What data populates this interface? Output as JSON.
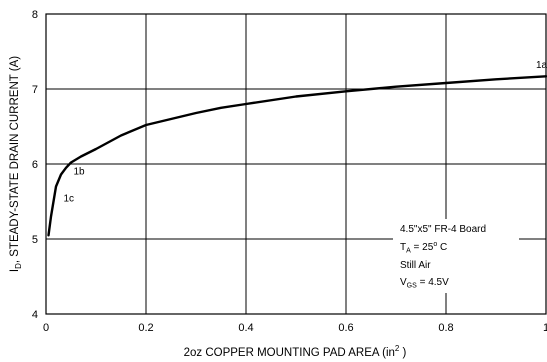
{
  "chart_data": {
    "type": "line",
    "title": "",
    "xlabel": "2oz COPPER MOUNTING PAD AREA (in",
    "xlabel_sup": "2",
    "xlabel_end": " )",
    "ylabel_sym": "I",
    "ylabel_sub": "D",
    "ylabel_rest": ", STEADY-STATE DRAIN CURRENT (A)",
    "xlim": [
      0,
      1
    ],
    "ylim": [
      4,
      8
    ],
    "xticks": [
      0,
      0.2,
      0.4,
      0.6,
      0.8,
      1
    ],
    "xtick_labels": [
      "0",
      "0.2",
      "0.4",
      "0.6",
      "0.8",
      "1"
    ],
    "yticks": [
      4,
      5,
      6,
      7,
      8
    ],
    "ytick_labels": [
      "4",
      "5",
      "6",
      "7",
      "8"
    ],
    "grid": true,
    "series": [
      {
        "x": [
          0.005,
          0.01,
          0.02,
          0.03,
          0.04,
          0.05,
          0.07,
          0.1,
          0.15,
          0.2,
          0.25,
          0.3,
          0.35,
          0.4,
          0.5,
          0.6,
          0.7,
          0.8,
          0.9,
          1.0
        ],
        "y": [
          5.05,
          5.3,
          5.7,
          5.86,
          5.95,
          6.02,
          6.1,
          6.2,
          6.38,
          6.52,
          6.6,
          6.68,
          6.75,
          6.8,
          6.9,
          6.97,
          7.03,
          7.08,
          7.13,
          7.17
        ]
      }
    ],
    "annotations": [
      {
        "text": "1a",
        "x": 0.98,
        "y": 7.28
      },
      {
        "text": "1b",
        "x": 0.055,
        "y": 5.86
      },
      {
        "text": "1c",
        "x": 0.035,
        "y": 5.5
      }
    ],
    "conditions": {
      "board": "4.5\"x5\" FR-4 Board",
      "ta_sym": "T",
      "ta_sub": "A",
      "ta_val": " = 25",
      "ta_deg": "o",
      "ta_unit": " C",
      "air": "Still Air",
      "vgs_sym": "V",
      "vgs_sub": "GS",
      "vgs_val": " = 4.5V"
    }
  }
}
